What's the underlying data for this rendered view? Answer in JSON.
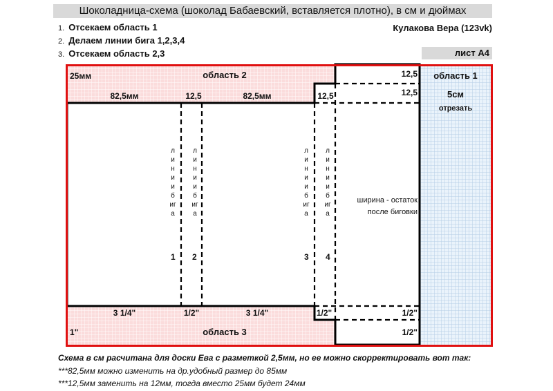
{
  "title": "Шоколадница-схема (шоколад Бабаевский, вставляется плотно), в см и дюймах",
  "steps": [
    {
      "n": "1.",
      "text": "Отсекаем область 1"
    },
    {
      "n": "2.",
      "text": "Делаем линии бига 1,2,3,4"
    },
    {
      "n": "3.",
      "text": "Отсекаем область 2,3"
    }
  ],
  "author": "Кулакова Вера (123vk)",
  "sheet": "лист А4",
  "area2": {
    "label": "область 2",
    "height": "25мм",
    "w1": "82,5мм",
    "w2": "12,5",
    "w3": "82,5мм",
    "w4": "12,5",
    "r1": "12,5",
    "r2": "12,5"
  },
  "area1": {
    "label": "область 1",
    "size": "5см",
    "action": "отрезать"
  },
  "fold_lines": {
    "text": "линии бига",
    "numbers": [
      "1",
      "2",
      "3",
      "4"
    ]
  },
  "width_note": [
    "ширина - остаток",
    "после биговки"
  ],
  "area3": {
    "label": "область 3",
    "height": "1\"",
    "w1": "3 1/4\"",
    "w2": "1/2\"",
    "w3": "3 1/4\"",
    "w4": "1/2\"",
    "r1": "1/2\"",
    "r2": "1/2\""
  },
  "footer": [
    "Схема в см расчитана для доски Ева с разметкой 2,5мм, но ее можно скорректировать вот так:",
    "***82,5мм можно изменить на др.удобный размер до 85мм",
    "***12,5мм заменить на 12мм, тогда вместо 25мм будет 24мм"
  ],
  "colors": {
    "frame": "#e01010",
    "area2_3": "#fbdcdc",
    "area1": "#eaf3fb",
    "header": "#d9d9d9"
  }
}
